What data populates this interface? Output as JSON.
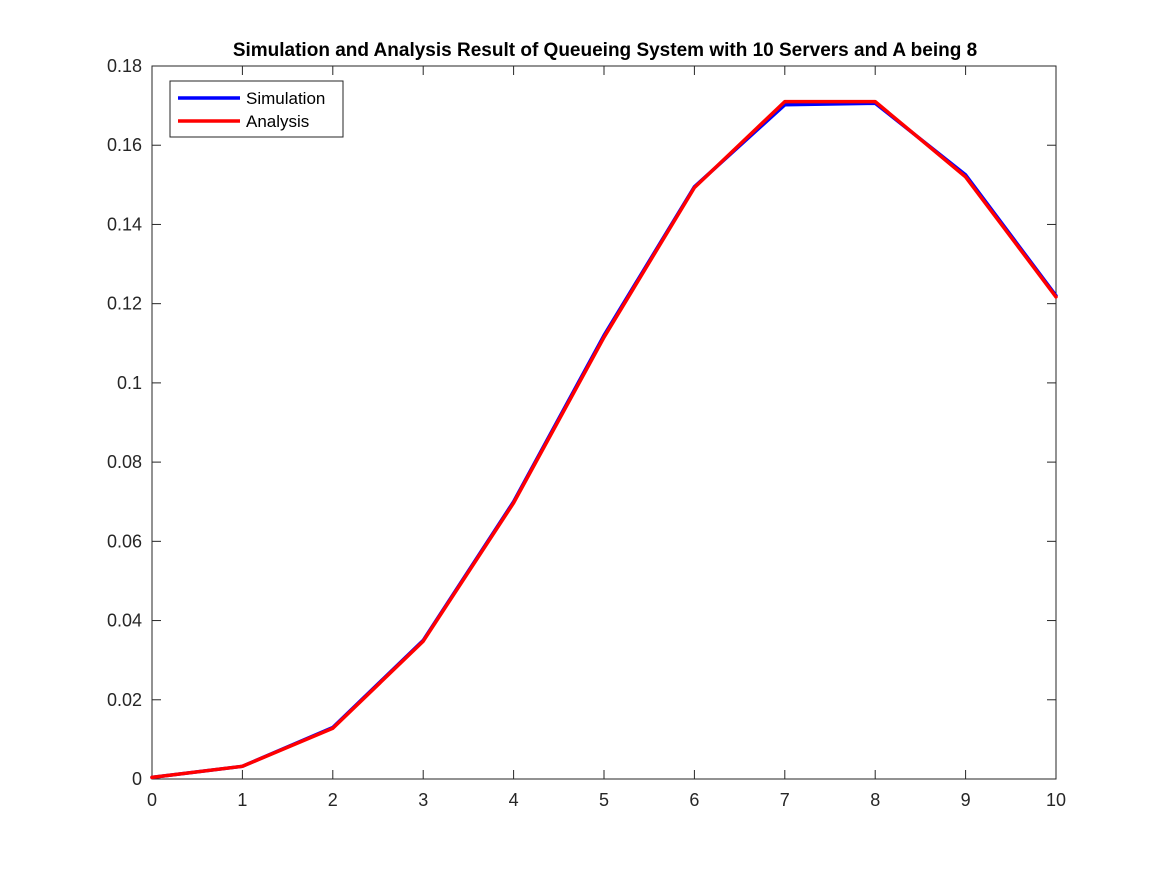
{
  "chart_data": {
    "type": "line",
    "title": "Simulation and Analysis Result of Queueing System with 10 Servers and A being 8",
    "xlabel": "",
    "ylabel": "",
    "xlim": [
      0,
      10
    ],
    "ylim": [
      0,
      0.18
    ],
    "x_ticks": [
      "0",
      "1",
      "2",
      "3",
      "4",
      "5",
      "6",
      "7",
      "8",
      "9",
      "10"
    ],
    "y_ticks": [
      "0",
      "0.02",
      "0.04",
      "0.06",
      "0.08",
      "0.1",
      "0.12",
      "0.14",
      "0.16",
      "0.18"
    ],
    "grid": false,
    "legend_position": "top-left",
    "x": [
      0,
      1,
      2,
      3,
      4,
      5,
      6,
      7,
      8,
      9,
      10
    ],
    "series": [
      {
        "name": "Simulation",
        "color": "#0000ff",
        "values": [
          0.0004,
          0.0032,
          0.013,
          0.035,
          0.07,
          0.112,
          0.1495,
          0.1702,
          0.1706,
          0.1525,
          0.122
        ]
      },
      {
        "name": "Analysis",
        "color": "#ff0000",
        "values": [
          0.0004,
          0.0032,
          0.0128,
          0.0348,
          0.0697,
          0.1115,
          0.1493,
          0.171,
          0.171,
          0.152,
          0.1217
        ]
      }
    ]
  }
}
